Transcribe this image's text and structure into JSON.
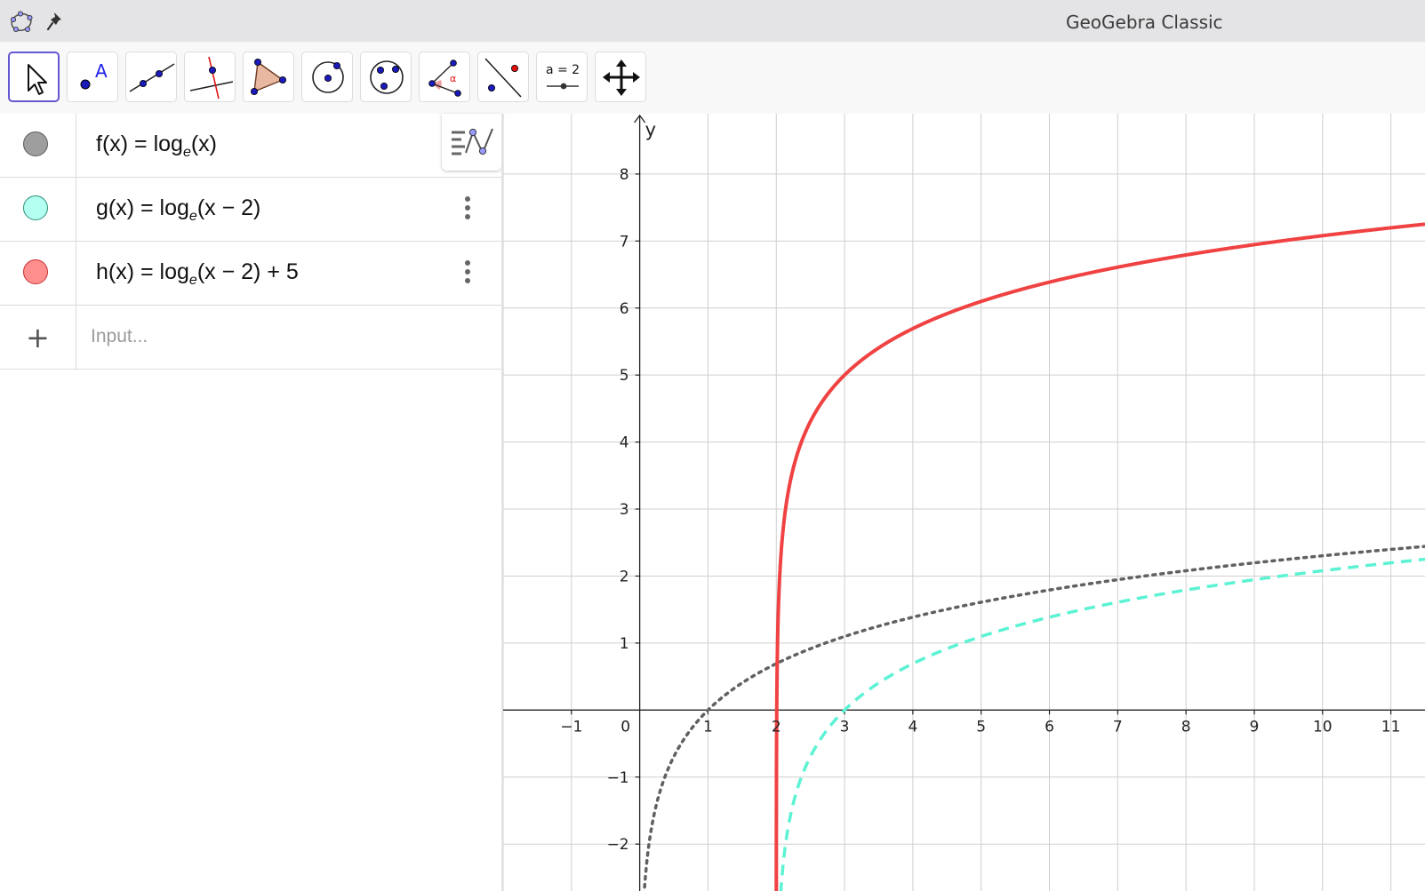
{
  "app": {
    "title": "GeoGebra Classic",
    "icons": [
      "geogebra-logo-icon",
      "pin-icon"
    ]
  },
  "toolbar": {
    "tools": [
      {
        "name": "move-tool",
        "icon": "arrow-cursor-icon",
        "selected": true
      },
      {
        "name": "point-tool",
        "icon": "point-icon",
        "label": "A"
      },
      {
        "name": "line-tool",
        "icon": "line-through-two-points-icon"
      },
      {
        "name": "perpendicular-line-tool",
        "icon": "perpendicular-line-icon"
      },
      {
        "name": "polygon-tool",
        "icon": "polygon-icon"
      },
      {
        "name": "circle-center-point-tool",
        "icon": "circle-center-icon"
      },
      {
        "name": "circle-three-points-tool",
        "icon": "circle-three-points-icon"
      },
      {
        "name": "angle-tool",
        "icon": "angle-icon",
        "label": "α"
      },
      {
        "name": "reflect-about-line-tool",
        "icon": "reflect-icon"
      },
      {
        "name": "slider-tool",
        "icon": "slider-icon",
        "label": "a = 2"
      },
      {
        "name": "move-graphics-view-tool",
        "icon": "move-arrows-icon"
      }
    ],
    "accent_color": "#6557d2"
  },
  "algebra": {
    "rows": [
      {
        "name_part": "f(x) = log",
        "base": "e",
        "arg": "(x)",
        "color": "#9e9e9e",
        "border": "#5a5a5a"
      },
      {
        "name_part": "g(x) = log",
        "base": "e",
        "arg": "(x − 2)",
        "color": "#b3fff0",
        "border": "#2e8f7a"
      },
      {
        "name_part": "h(x) = log",
        "base": "e",
        "arg": "(x − 2) + 5",
        "color": "#ff8f8f",
        "border": "#c83030"
      }
    ],
    "input_placeholder": "Input..."
  },
  "chart_data": {
    "type": "line",
    "title": "",
    "xlabel": "",
    "ylabel": "y",
    "xlim": [
      -2,
      11.5
    ],
    "ylim": [
      -2.7,
      8.9
    ],
    "grid": true,
    "x_ticks": [
      "-1",
      "0",
      "1",
      "2",
      "3",
      "4",
      "5",
      "6",
      "7",
      "8",
      "9",
      "10",
      "11"
    ],
    "y_ticks": [
      "8",
      "7",
      "6",
      "5",
      "4",
      "3",
      "2",
      "1",
      "-1",
      "-2"
    ],
    "series": [
      {
        "name": "f",
        "expression": "ln(x)",
        "domain_start": 0,
        "color": "#616161",
        "style": "dotted"
      },
      {
        "name": "g",
        "expression": "ln(x - 2)",
        "domain_start": 2,
        "color": "#5cf2d4",
        "style": "dashed"
      },
      {
        "name": "h",
        "expression": "ln(x - 2) + 5",
        "domain_start": 2,
        "color": "#f04242",
        "style": "solid"
      }
    ]
  }
}
